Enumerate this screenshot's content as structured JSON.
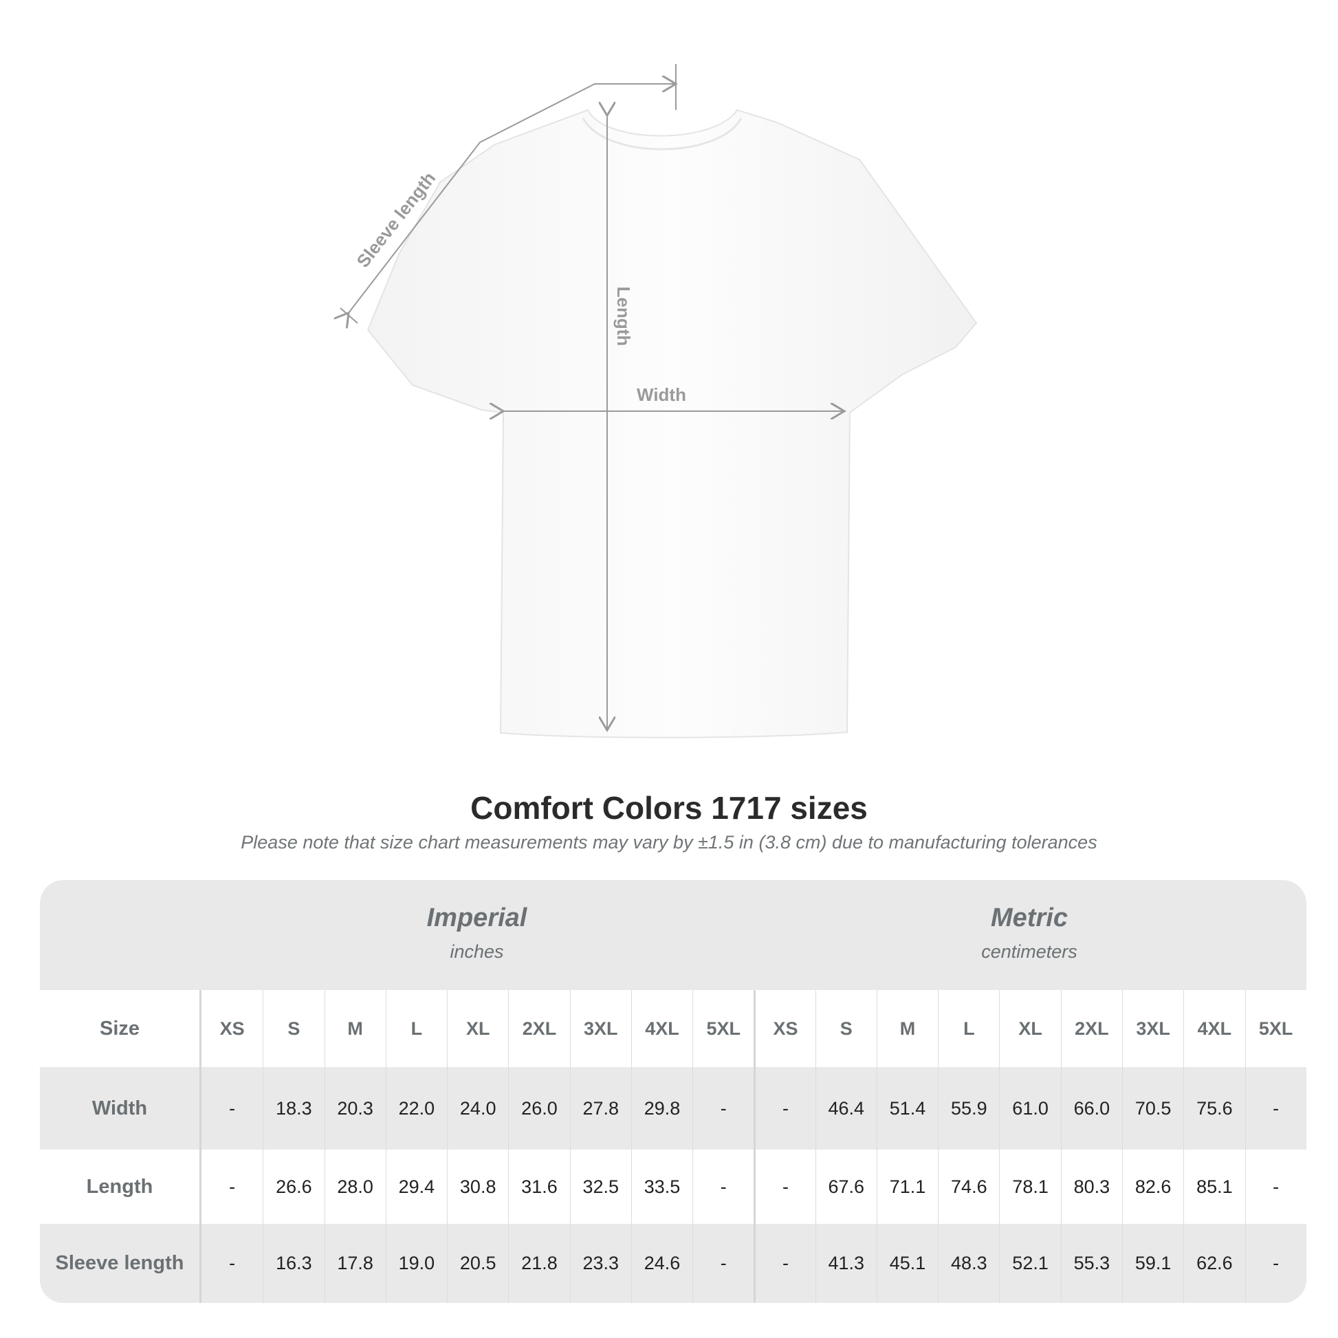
{
  "diagram": {
    "labels": {
      "sleeve": "Sleeve length",
      "length": "Length",
      "width": "Width"
    },
    "shirt_color": "#ffffff",
    "line_color": "#9a9a9a"
  },
  "title": "Comfort Colors 1717 sizes",
  "note": "Please note that size chart measurements may vary by ±1.5 in (3.8 cm) due to manufacturing tolerances",
  "table": {
    "imperial": {
      "title": "Imperial",
      "unit": "inches"
    },
    "metric": {
      "title": "Metric",
      "unit": "centimeters"
    },
    "size_label": "Size",
    "sizes": [
      "XS",
      "S",
      "M",
      "L",
      "XL",
      "2XL",
      "3XL",
      "4XL",
      "5XL"
    ],
    "rows": [
      {
        "label": "Width",
        "imperial": [
          "-",
          "18.3",
          "20.3",
          "22.0",
          "24.0",
          "26.0",
          "27.8",
          "29.8",
          "-"
        ],
        "metric": [
          "-",
          "46.4",
          "51.4",
          "55.9",
          "61.0",
          "66.0",
          "70.5",
          "75.6",
          "-"
        ]
      },
      {
        "label": "Length",
        "imperial": [
          "-",
          "26.6",
          "28.0",
          "29.4",
          "30.8",
          "31.6",
          "32.5",
          "33.5",
          "-"
        ],
        "metric": [
          "-",
          "67.6",
          "71.1",
          "74.6",
          "78.1",
          "80.3",
          "82.6",
          "85.1",
          "-"
        ]
      },
      {
        "label": "Sleeve length",
        "imperial": [
          "-",
          "16.3",
          "17.8",
          "19.0",
          "20.5",
          "21.8",
          "23.3",
          "24.6",
          "-"
        ],
        "metric": [
          "-",
          "41.3",
          "45.1",
          "48.3",
          "52.1",
          "55.3",
          "59.1",
          "62.6",
          "-"
        ]
      }
    ]
  }
}
